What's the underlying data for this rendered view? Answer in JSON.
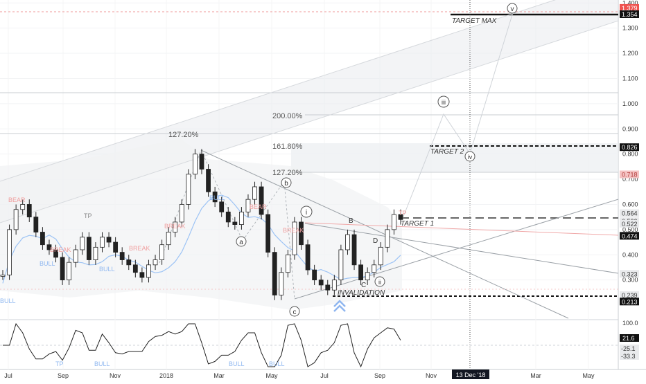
{
  "chart_data": {
    "type": "line",
    "title": "",
    "xlabel": "",
    "ylabel": "",
    "ylim": [
      0.15,
      1.4
    ],
    "y_axis_ticks": [
      "1.400",
      "1.300",
      "1.200",
      "1.100",
      "1.000",
      "0.900",
      "0.800",
      "0.700",
      "0.600",
      "0.500",
      "0.400",
      "0.300"
    ],
    "x_axis_ticks": [
      "Jul",
      "Sep",
      "Nov",
      "2018",
      "Mar",
      "May",
      "Jul",
      "Sep",
      "Nov",
      "Mar",
      "May"
    ],
    "crosshair_x_label": "13 Dec '18",
    "grid": true,
    "series": [
      {
        "values": [
          0.32,
          0.5,
          0.58,
          0.6,
          0.55,
          0.49,
          0.44,
          0.42,
          0.39,
          0.3,
          0.37,
          0.42,
          0.47,
          0.38,
          0.43,
          0.47,
          0.45,
          0.41,
          0.38,
          0.36,
          0.33,
          0.31,
          0.36,
          0.38,
          0.44,
          0.49,
          0.53,
          0.6,
          0.72,
          0.8,
          0.74,
          0.65,
          0.61,
          0.57,
          0.53,
          0.52,
          0.57,
          0.62,
          0.67,
          0.56,
          0.41,
          0.24,
          0.33,
          0.4,
          0.53,
          0.44,
          0.34,
          0.3,
          0.28,
          0.26,
          0.3,
          0.42,
          0.48,
          0.36,
          0.3,
          0.33,
          0.36,
          0.43,
          0.5,
          0.56,
          0.54
        ]
      }
    ],
    "price_labels": [
      "1.379",
      "1.354",
      "0.826",
      "0.718",
      "0.564",
      "0.532",
      "0.522",
      "0.474",
      "0.323",
      "0.239",
      "0.213"
    ],
    "fib_labels": [
      "127.20%",
      "200.00%",
      "161.80%",
      "127.20%"
    ],
    "annotations": [
      "TARGET MAX",
      "TARGET 2",
      "TARGET 1",
      "INVALIDATION"
    ],
    "wave_labels": [
      "v",
      "iii",
      "iv",
      "i",
      "ii",
      "b",
      "a",
      "c"
    ],
    "sub_labels": [
      "B",
      "C",
      "D"
    ],
    "signal_labels": [
      "BEAR",
      "BREAK",
      "BULL",
      "BULL",
      "BREAK",
      "BULL",
      "BEAR",
      "BREAK",
      "BREAK",
      "BULL",
      "TP",
      "TP"
    ],
    "oscillator": {
      "axis_labels": [
        "100.0",
        "21.6",
        "-25.1",
        "-33.3"
      ],
      "signal_labels": [
        "TP",
        "BULL",
        "BULL",
        "BULL"
      ]
    }
  }
}
